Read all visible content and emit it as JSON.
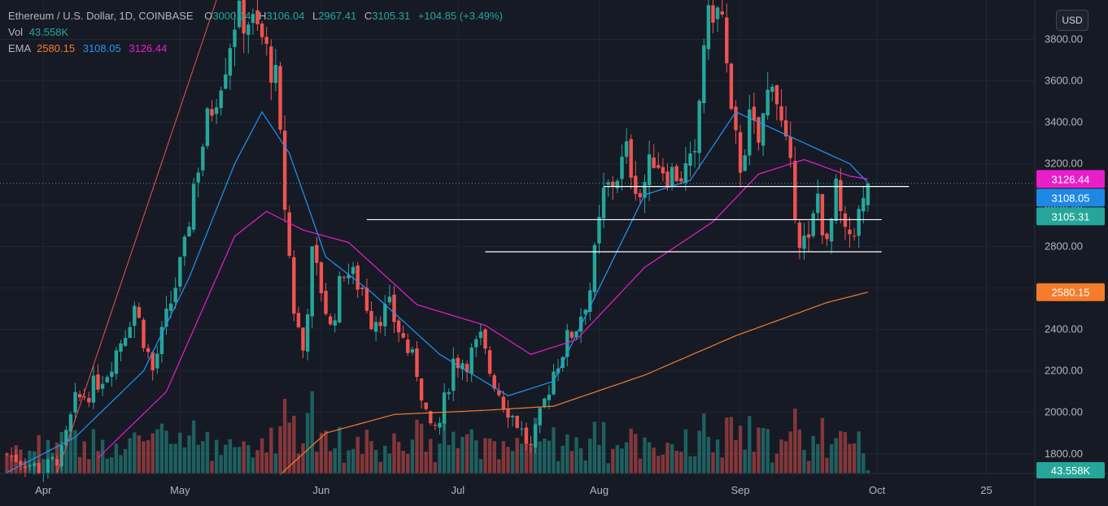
{
  "legend": {
    "symbol": "Ethereum / U.S. Dollar, 1D, COINBASE",
    "o_label": "O",
    "o_value": "3000.14",
    "h_label": "H",
    "h_value": "3106.04",
    "l_label": "L",
    "l_value": "2967.41",
    "c_label": "C",
    "c_value": "3105.31",
    "change": "+104.85 (+3.49%)",
    "vol_label": "Vol",
    "vol_value": "43.558K",
    "ema_label": "EMA",
    "ema1": "2580.15",
    "ema2": "3108.05",
    "ema3": "3126.44"
  },
  "currency_button": "USD",
  "colors": {
    "background": "#161a25",
    "up": "#26a69a",
    "down": "#ef5350",
    "ema_long": "#f57c2b",
    "ema_mid": "#2196f3",
    "ema_short": "#e91ec9",
    "hline": "#ffffff"
  },
  "price_pills": [
    {
      "text": "3126.44",
      "value": 3126.44,
      "color": "#e91ec9"
    },
    {
      "text": "3108.05",
      "value": 3108.05,
      "color": "#1e88e5"
    },
    {
      "text": "3105.31",
      "value": 3105.31,
      "color": "#26a69a"
    },
    {
      "text": "2580.15",
      "value": 2580.15,
      "color": "#f57c2b"
    }
  ],
  "volume_pill": "43.558K",
  "chart_data": {
    "type": "candlestick",
    "title": "Ethereum / U.S. Dollar, 1D, COINBASE",
    "y_ticks": [
      "3800.00",
      "3600.00",
      "3400.00",
      "3200.00",
      "3000.00",
      "2800.00",
      "2600.00",
      "2400.00",
      "2200.00",
      "2000.00",
      "1800.00"
    ],
    "y_range": [
      1705,
      3990
    ],
    "x_ticks": [
      {
        "label": "Apr",
        "day": 8
      },
      {
        "label": "May",
        "day": 38
      },
      {
        "label": "Jun",
        "day": 69
      },
      {
        "label": "Jul",
        "day": 99
      },
      {
        "label": "Aug",
        "day": 130
      },
      {
        "label": "Sep",
        "day": 161
      },
      {
        "label": "Oct",
        "day": 191
      },
      {
        "label": "25",
        "day": 215
      }
    ],
    "price_anchors": [
      [
        0,
        1800
      ],
      [
        4,
        1760
      ],
      [
        8,
        1720
      ],
      [
        12,
        1800
      ],
      [
        15,
        2050
      ],
      [
        18,
        2100
      ],
      [
        22,
        2200
      ],
      [
        26,
        2400
      ],
      [
        28,
        2520
      ],
      [
        32,
        2200
      ],
      [
        35,
        2450
      ],
      [
        39,
        2780
      ],
      [
        41,
        3100
      ],
      [
        44,
        3400
      ],
      [
        48,
        3700
      ],
      [
        50,
        3900
      ],
      [
        53,
        3900
      ],
      [
        56,
        3800
      ],
      [
        59,
        3600
      ],
      [
        61,
        3000
      ],
      [
        63,
        2500
      ],
      [
        65,
        2300
      ],
      [
        67,
        2750
      ],
      [
        69,
        2600
      ],
      [
        71,
        2400
      ],
      [
        74,
        2700
      ],
      [
        78,
        2600
      ],
      [
        80,
        2450
      ],
      [
        84,
        2500
      ],
      [
        87,
        2350
      ],
      [
        90,
        2200
      ],
      [
        93,
        1900
      ],
      [
        95,
        1950
      ],
      [
        98,
        2250
      ],
      [
        101,
        2250
      ],
      [
        104,
        2350
      ],
      [
        106,
        2200
      ],
      [
        109,
        2050
      ],
      [
        112,
        1950
      ],
      [
        115,
        1820
      ],
      [
        118,
        2050
      ],
      [
        120,
        2200
      ],
      [
        123,
        2350
      ],
      [
        125,
        2420
      ],
      [
        128,
        2600
      ],
      [
        131,
        3050
      ],
      [
        134,
        3150
      ],
      [
        136,
        3250
      ],
      [
        139,
        3050
      ],
      [
        142,
        3240
      ],
      [
        145,
        3160
      ],
      [
        148,
        3150
      ],
      [
        151,
        3200
      ],
      [
        153,
        3800
      ],
      [
        155,
        3950
      ],
      [
        157,
        3900
      ],
      [
        159,
        3400
      ],
      [
        161,
        3200
      ],
      [
        163,
        3400
      ],
      [
        165,
        3300
      ],
      [
        168,
        3650
      ],
      [
        170,
        3380
      ],
      [
        172,
        3150
      ],
      [
        174,
        2850
      ],
      [
        176,
        2800
      ],
      [
        178,
        3050
      ],
      [
        180,
        2780
      ],
      [
        182,
        3060
      ],
      [
        184,
        2830
      ],
      [
        186,
        2900
      ],
      [
        188,
        3000
      ],
      [
        189,
        3105.31
      ]
    ],
    "ema_long_anchors": [
      [
        60,
        1700
      ],
      [
        70,
        1900
      ],
      [
        85,
        1990
      ],
      [
        105,
        2010
      ],
      [
        120,
        2030
      ],
      [
        140,
        2180
      ],
      [
        160,
        2370
      ],
      [
        180,
        2530
      ],
      [
        189,
        2580.15
      ]
    ],
    "ema_mid_anchors": [
      [
        0,
        1710
      ],
      [
        15,
        1880
      ],
      [
        30,
        2200
      ],
      [
        40,
        2650
      ],
      [
        50,
        3200
      ],
      [
        56,
        3450
      ],
      [
        62,
        3250
      ],
      [
        70,
        2750
      ],
      [
        80,
        2580
      ],
      [
        95,
        2280
      ],
      [
        110,
        2080
      ],
      [
        120,
        2150
      ],
      [
        130,
        2600
      ],
      [
        140,
        3050
      ],
      [
        150,
        3120
      ],
      [
        160,
        3450
      ],
      [
        165,
        3400
      ],
      [
        175,
        3300
      ],
      [
        185,
        3200
      ],
      [
        189,
        3108.05
      ]
    ],
    "ema_short_anchors": [
      [
        20,
        1780
      ],
      [
        35,
        2100
      ],
      [
        50,
        2850
      ],
      [
        57,
        2970
      ],
      [
        65,
        2880
      ],
      [
        75,
        2820
      ],
      [
        90,
        2520
      ],
      [
        105,
        2420
      ],
      [
        115,
        2280
      ],
      [
        125,
        2350
      ],
      [
        140,
        2700
      ],
      [
        155,
        2920
      ],
      [
        165,
        3150
      ],
      [
        175,
        3220
      ],
      [
        185,
        3140
      ],
      [
        189,
        3126.44
      ]
    ],
    "hlines": [
      {
        "price": 3090,
        "from_day": 131,
        "to_day": 198
      },
      {
        "price": 2930,
        "from_day": 79,
        "to_day": 192
      },
      {
        "price": 2775,
        "from_day": 105,
        "to_day": 192
      }
    ],
    "last_price": 3105.31,
    "volume_last": 43.558
  }
}
